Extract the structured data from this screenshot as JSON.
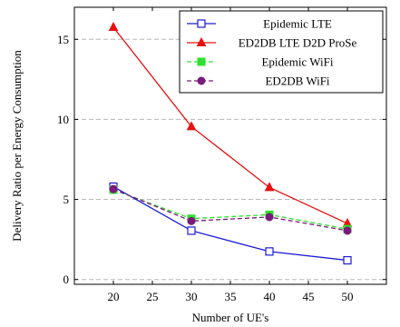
{
  "chart_data": {
    "type": "line",
    "xlabel": "Number of UE's",
    "ylabel": "Delivery Ratio per Energy Consumption",
    "x": [
      20,
      30,
      40,
      50
    ],
    "xlim": [
      15,
      55
    ],
    "ylim": [
      -0.3,
      17
    ],
    "xticks": [
      20,
      25,
      30,
      35,
      40,
      45,
      50
    ],
    "yticks": [
      0,
      5,
      10,
      15
    ],
    "grid": "horizontal dashed",
    "legend_position": "top-right",
    "series": [
      {
        "name": "Epidemic LTE",
        "values": [
          5.8,
          3.05,
          1.75,
          1.2
        ],
        "color": "#1a1ad6",
        "line": "solid",
        "marker": "square-open"
      },
      {
        "name": "ED2DB LTE D2D ProSe",
        "values": [
          15.75,
          9.55,
          5.75,
          3.5
        ],
        "color": "#e81010",
        "line": "solid",
        "marker": "triangle"
      },
      {
        "name": "Epidemic WiFi",
        "values": [
          5.6,
          3.8,
          4.05,
          3.15
        ],
        "color": "#2ee02e",
        "line": "dashed",
        "marker": "square"
      },
      {
        "name": "ED2DB WiFi",
        "values": [
          5.65,
          3.65,
          3.9,
          3.05
        ],
        "color": "#7a1a7a",
        "line": "dashed",
        "marker": "circle"
      }
    ]
  }
}
